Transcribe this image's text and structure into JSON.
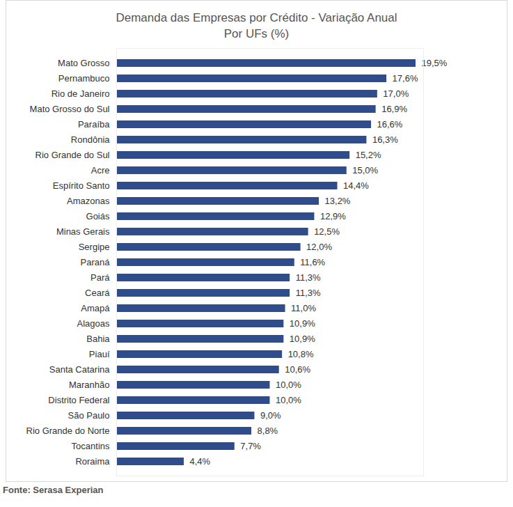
{
  "chart_data": {
    "type": "bar",
    "title": "Demanda das Empresas por Crédito - Variação Anual",
    "subtitle": "Por UFs (%)",
    "source": "Fonte: Serasa Experian",
    "orientation": "horizontal",
    "categories": [
      "Mato Grosso",
      "Pernambuco",
      "Rio de Janeiro",
      "Mato Grosso do Sul",
      "Paraíba",
      "Rondônia",
      "Rio Grande do Sul",
      "Acre",
      "Espírito Santo",
      "Amazonas",
      "Goiás",
      "Minas Gerais",
      "Sergipe",
      "Paraná",
      "Pará",
      "Ceará",
      "Amapá",
      "Alagoas",
      "Bahia",
      "Piauí",
      "Santa Catarina",
      "Maranhão",
      "Distrito Federal",
      "São Paulo",
      "Rio Grande do Norte",
      "Tocantins",
      "Roraima"
    ],
    "values": [
      19.5,
      17.6,
      17.0,
      16.9,
      16.6,
      16.3,
      15.2,
      15.0,
      14.4,
      13.2,
      12.9,
      12.5,
      12.0,
      11.6,
      11.3,
      11.3,
      11.0,
      10.9,
      10.9,
      10.8,
      10.6,
      10.0,
      10.0,
      9.0,
      8.8,
      7.7,
      4.4
    ],
    "value_labels": [
      "19,5%",
      "17,6%",
      "17,0%",
      "16,9%",
      "16,6%",
      "16,3%",
      "15,2%",
      "15,0%",
      "14,4%",
      "13,2%",
      "12,9%",
      "12,5%",
      "12,0%",
      "11,6%",
      "11,3%",
      "11,3%",
      "11,0%",
      "10,9%",
      "10,9%",
      "10,8%",
      "10,6%",
      "10,0%",
      "10,0%",
      "9,0%",
      "8,8%",
      "7,7%",
      "4,4%"
    ],
    "color": "#2f4d8c",
    "xlim": [
      0,
      20
    ],
    "data_labels": true,
    "tick_labels": "y",
    "grid": false
  }
}
